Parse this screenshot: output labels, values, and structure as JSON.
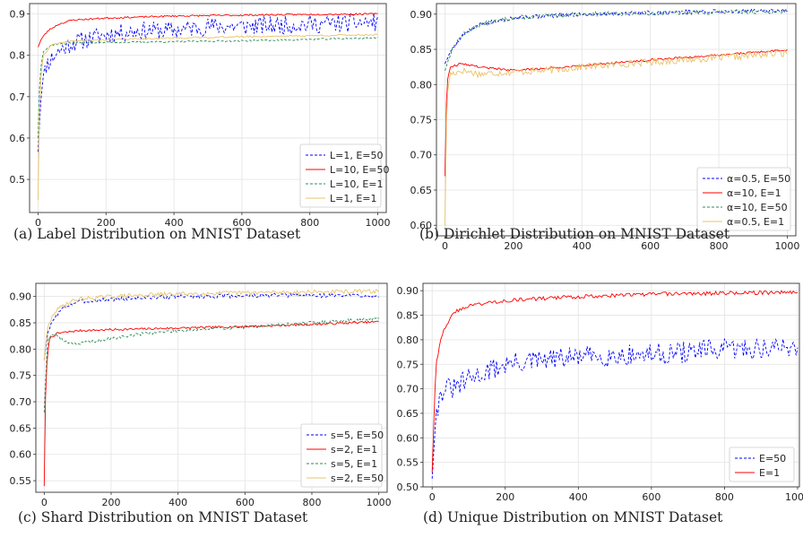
{
  "chart_data": [
    {
      "type": "line",
      "caption": "(a) Label Distribution on MNIST Dataset",
      "xlim": [
        -25,
        1025
      ],
      "ylim": [
        0.42,
        0.925
      ],
      "xticks": [
        0,
        200,
        400,
        600,
        800,
        1000
      ],
      "yticks": [
        0.5,
        0.6,
        0.7,
        0.8,
        0.9
      ],
      "ytick_labels": [
        "0.5",
        "0.6",
        "0.7",
        "0.8",
        "0.9"
      ],
      "grid": true,
      "legend_position": "lower-right",
      "series": [
        {
          "name": "L=1, E=50",
          "color": "#0000ff",
          "dash": "dashed",
          "noise": 0.022,
          "seed": 11,
          "points": [
            [
              0,
              0.57
            ],
            [
              10,
              0.72
            ],
            [
              25,
              0.78
            ],
            [
              60,
              0.81
            ],
            [
              100,
              0.83
            ],
            [
              200,
              0.85
            ],
            [
              300,
              0.86
            ],
            [
              400,
              0.86
            ],
            [
              500,
              0.87
            ],
            [
              600,
              0.87
            ],
            [
              800,
              0.875
            ],
            [
              1000,
              0.88
            ]
          ]
        },
        {
          "name": "L=10, E=50",
          "color": "#ff0000",
          "dash": "solid",
          "noise": 0.002,
          "seed": 23,
          "points": [
            [
              0,
              0.82
            ],
            [
              10,
              0.84
            ],
            [
              30,
              0.86
            ],
            [
              60,
              0.875
            ],
            [
              100,
              0.885
            ],
            [
              200,
              0.89
            ],
            [
              400,
              0.895
            ],
            [
              700,
              0.898
            ],
            [
              1000,
              0.9
            ]
          ]
        },
        {
          "name": "L=10, E=1",
          "color": "#2e8b57",
          "dash": "dashed",
          "noise": 0.002,
          "seed": 37,
          "points": [
            [
              0,
              0.6
            ],
            [
              5,
              0.75
            ],
            [
              15,
              0.81
            ],
            [
              40,
              0.825
            ],
            [
              100,
              0.83
            ],
            [
              300,
              0.832
            ],
            [
              600,
              0.835
            ],
            [
              1000,
              0.842
            ]
          ]
        },
        {
          "name": "L=1, E=1",
          "color": "#e8c46a",
          "dash": "solid",
          "noise": 0.002,
          "seed": 41,
          "points": [
            [
              0,
              0.45
            ],
            [
              5,
              0.72
            ],
            [
              15,
              0.8
            ],
            [
              40,
              0.825
            ],
            [
              100,
              0.835
            ],
            [
              300,
              0.84
            ],
            [
              600,
              0.845
            ],
            [
              1000,
              0.85
            ]
          ]
        }
      ]
    },
    {
      "type": "line",
      "caption": "(b) Dirichlet Distribution on MNIST Dataset",
      "xlim": [
        -25,
        1025
      ],
      "ylim": [
        0.585,
        0.915
      ],
      "xticks": [
        0,
        200,
        400,
        600,
        800,
        1000
      ],
      "yticks": [
        0.6,
        0.65,
        0.7,
        0.75,
        0.8,
        0.85,
        0.9
      ],
      "ytick_labels": [
        "0.60",
        "0.65",
        "0.70",
        "0.75",
        "0.80",
        "0.85",
        "0.90"
      ],
      "grid": true,
      "legend_position": "lower-right",
      "series": [
        {
          "name": "α=0.5, E=50",
          "color": "#0000ff",
          "dash": "dashed",
          "noise": 0.003,
          "seed": 5,
          "points": [
            [
              0,
              0.83
            ],
            [
              20,
              0.85
            ],
            [
              50,
              0.87
            ],
            [
              100,
              0.885
            ],
            [
              200,
              0.895
            ],
            [
              400,
              0.9
            ],
            [
              700,
              0.903
            ],
            [
              1000,
              0.905
            ]
          ]
        },
        {
          "name": "α=10, E=1",
          "color": "#ff0000",
          "dash": "solid",
          "noise": 0.0015,
          "seed": 9,
          "points": [
            [
              0,
              0.67
            ],
            [
              5,
              0.8
            ],
            [
              15,
              0.825
            ],
            [
              50,
              0.83
            ],
            [
              100,
              0.825
            ],
            [
              200,
              0.82
            ],
            [
              300,
              0.823
            ],
            [
              400,
              0.827
            ],
            [
              600,
              0.835
            ],
            [
              800,
              0.842
            ],
            [
              1000,
              0.849
            ]
          ]
        },
        {
          "name": "α=10, E=50",
          "color": "#2e8b57",
          "dash": "dashed",
          "noise": 0.003,
          "seed": 13,
          "points": [
            [
              0,
              0.82
            ],
            [
              20,
              0.85
            ],
            [
              50,
              0.87
            ],
            [
              100,
              0.885
            ],
            [
              200,
              0.895
            ],
            [
              400,
              0.9
            ],
            [
              700,
              0.902
            ],
            [
              1000,
              0.904
            ]
          ]
        },
        {
          "name": "α=0.5, E=1",
          "color": "#e8c46a",
          "dash": "solid",
          "noise": 0.005,
          "seed": 17,
          "points": [
            [
              0,
              0.6
            ],
            [
              5,
              0.78
            ],
            [
              15,
              0.815
            ],
            [
              50,
              0.82
            ],
            [
              100,
              0.815
            ],
            [
              200,
              0.818
            ],
            [
              300,
              0.82
            ],
            [
              400,
              0.825
            ],
            [
              600,
              0.832
            ],
            [
              800,
              0.838
            ],
            [
              1000,
              0.845
            ]
          ]
        }
      ]
    },
    {
      "type": "line",
      "caption": "(c) Shard Distribution on MNIST Dataset",
      "xlim": [
        -25,
        1025
      ],
      "ylim": [
        0.528,
        0.925
      ],
      "xticks": [
        0,
        200,
        400,
        600,
        800,
        1000
      ],
      "yticks": [
        0.55,
        0.6,
        0.65,
        0.7,
        0.75,
        0.8,
        0.85,
        0.9
      ],
      "ytick_labels": [
        "0.55",
        "0.60",
        "0.65",
        "0.70",
        "0.75",
        "0.80",
        "0.85",
        "0.90"
      ],
      "grid": true,
      "legend_position": "lower-right",
      "series": [
        {
          "name": "s=5, E=50",
          "color": "#0000ff",
          "dash": "dashed",
          "noise": 0.004,
          "seed": 3,
          "points": [
            [
              0,
              0.78
            ],
            [
              10,
              0.83
            ],
            [
              30,
              0.86
            ],
            [
              60,
              0.88
            ],
            [
              100,
              0.89
            ],
            [
              200,
              0.895
            ],
            [
              400,
              0.9
            ],
            [
              700,
              0.902
            ],
            [
              1000,
              0.902
            ]
          ]
        },
        {
          "name": "s=2, E=1",
          "color": "#ff0000",
          "dash": "solid",
          "noise": 0.002,
          "seed": 7,
          "points": [
            [
              0,
              0.54
            ],
            [
              5,
              0.75
            ],
            [
              15,
              0.82
            ],
            [
              40,
              0.83
            ],
            [
              100,
              0.835
            ],
            [
              200,
              0.837
            ],
            [
              400,
              0.84
            ],
            [
              600,
              0.843
            ],
            [
              800,
              0.847
            ],
            [
              1000,
              0.852
            ]
          ]
        },
        {
          "name": "s=5, E=1",
          "color": "#2e8b57",
          "dash": "dashed",
          "noise": 0.003,
          "seed": 19,
          "points": [
            [
              0,
              0.68
            ],
            [
              10,
              0.82
            ],
            [
              30,
              0.83
            ],
            [
              60,
              0.815
            ],
            [
              100,
              0.81
            ],
            [
              200,
              0.82
            ],
            [
              300,
              0.83
            ],
            [
              400,
              0.835
            ],
            [
              600,
              0.842
            ],
            [
              800,
              0.85
            ],
            [
              1000,
              0.858
            ]
          ]
        },
        {
          "name": "s=2, E=50",
          "color": "#e8c46a",
          "dash": "solid",
          "noise": 0.004,
          "seed": 29,
          "points": [
            [
              0,
              0.78
            ],
            [
              10,
              0.84
            ],
            [
              30,
              0.87
            ],
            [
              60,
              0.885
            ],
            [
              100,
              0.895
            ],
            [
              200,
              0.9
            ],
            [
              400,
              0.905
            ],
            [
              700,
              0.908
            ],
            [
              1000,
              0.91
            ]
          ]
        }
      ]
    },
    {
      "type": "line",
      "caption": "(d) Unique Distribution on MNIST Dataset",
      "xlim": [
        -25,
        1005
      ],
      "ylim": [
        0.5,
        0.915
      ],
      "xticks": [
        0,
        200,
        400,
        600,
        800,
        1000
      ],
      "yticks": [
        0.5,
        0.55,
        0.6,
        0.65,
        0.7,
        0.75,
        0.8,
        0.85,
        0.9
      ],
      "ytick_labels": [
        "0.50",
        "0.55",
        "0.60",
        "0.65",
        "0.70",
        "0.75",
        "0.80",
        "0.85",
        "0.90"
      ],
      "grid": true,
      "legend_position": "lower-right",
      "series": [
        {
          "name": "E=50",
          "color": "#0000ff",
          "dash": "dashed",
          "noise": 0.022,
          "seed": 31,
          "points": [
            [
              0,
              0.52
            ],
            [
              10,
              0.65
            ],
            [
              30,
              0.7
            ],
            [
              60,
              0.7
            ],
            [
              100,
              0.72
            ],
            [
              200,
              0.75
            ],
            [
              400,
              0.765
            ],
            [
              600,
              0.77
            ],
            [
              800,
              0.78
            ],
            [
              1000,
              0.785
            ]
          ]
        },
        {
          "name": "E=1",
          "color": "#ff0000",
          "dash": "solid",
          "noise": 0.004,
          "seed": 43,
          "points": [
            [
              0,
              0.53
            ],
            [
              10,
              0.75
            ],
            [
              30,
              0.82
            ],
            [
              60,
              0.855
            ],
            [
              100,
              0.87
            ],
            [
              200,
              0.88
            ],
            [
              400,
              0.888
            ],
            [
              600,
              0.893
            ],
            [
              800,
              0.895
            ],
            [
              1000,
              0.897
            ]
          ]
        }
      ]
    }
  ]
}
